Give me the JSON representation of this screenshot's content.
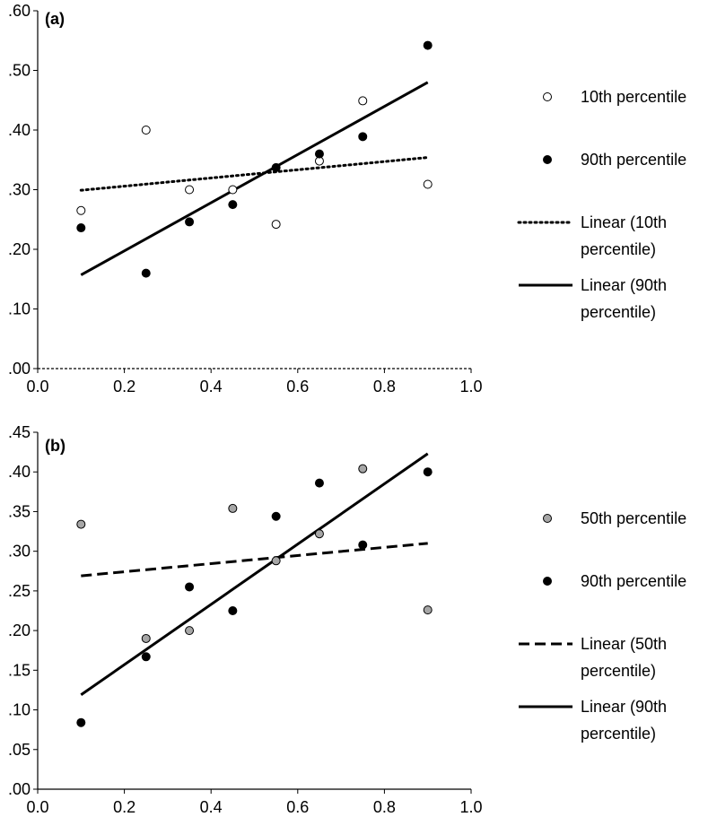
{
  "chart_data": [
    {
      "type": "scatter",
      "panel_label": "(a)",
      "xlim": [
        0.0,
        1.0
      ],
      "ylim": [
        0.0,
        0.6
      ],
      "x_ticks": [
        "0.0",
        "0.2",
        "0.4",
        "0.6",
        "0.8",
        "1.0"
      ],
      "y_ticks": [
        ".00",
        ".10",
        ".20",
        ".30",
        ".40",
        ".50",
        ".60"
      ],
      "series": [
        {
          "name": "10th percentile",
          "marker": "open-circle",
          "color": "#ffffff",
          "x": [
            0.1,
            0.25,
            0.35,
            0.45,
            0.55,
            0.65,
            0.75,
            0.9
          ],
          "y": [
            0.265,
            0.4,
            0.3,
            0.3,
            0.242,
            0.348,
            0.449,
            0.309
          ]
        },
        {
          "name": "90th percentile",
          "marker": "filled-circle",
          "color": "#000000",
          "x": [
            0.1,
            0.25,
            0.35,
            0.45,
            0.55,
            0.65,
            0.75,
            0.9
          ],
          "y": [
            0.236,
            0.16,
            0.246,
            0.275,
            0.337,
            0.36,
            0.389,
            0.542
          ]
        }
      ],
      "trendlines": [
        {
          "name": "Linear (10th percentile)",
          "name_lines": [
            "Linear (10th",
            "percentile)"
          ],
          "style": "dotted",
          "x": [
            0.1,
            0.9
          ],
          "y": [
            0.299,
            0.354
          ]
        },
        {
          "name": "Linear (90th percentile)",
          "name_lines": [
            "Linear (90th",
            "percentile)"
          ],
          "style": "solid",
          "x": [
            0.1,
            0.9
          ],
          "y": [
            0.157,
            0.48
          ]
        }
      ],
      "baseline": {
        "y": 0.0,
        "style": "dashed"
      }
    },
    {
      "type": "scatter",
      "panel_label": "(b)",
      "xlim": [
        0.0,
        1.0
      ],
      "ylim": [
        0.0,
        0.45
      ],
      "x_ticks": [
        "0.0",
        "0.2",
        "0.4",
        "0.6",
        "0.8",
        "1.0"
      ],
      "y_ticks": [
        ".00",
        ".05",
        ".10",
        ".15",
        ".20",
        ".25",
        ".30",
        ".35",
        ".40",
        ".45"
      ],
      "series": [
        {
          "name": "50th percentile",
          "marker": "grey-circle",
          "color": "#a6a6a6",
          "x": [
            0.1,
            0.25,
            0.35,
            0.45,
            0.55,
            0.65,
            0.75,
            0.9
          ],
          "y": [
            0.334,
            0.19,
            0.2,
            0.354,
            0.288,
            0.322,
            0.404,
            0.226
          ]
        },
        {
          "name": "90th percentile",
          "marker": "filled-circle",
          "color": "#000000",
          "x": [
            0.1,
            0.25,
            0.35,
            0.45,
            0.55,
            0.65,
            0.75,
            0.9
          ],
          "y": [
            0.084,
            0.167,
            0.255,
            0.225,
            0.344,
            0.386,
            0.308,
            0.4
          ]
        }
      ],
      "trendlines": [
        {
          "name": "Linear (50th percentile)",
          "name_lines": [
            "Linear (50th",
            "percentile)"
          ],
          "style": "dashed",
          "x": [
            0.1,
            0.9
          ],
          "y": [
            0.269,
            0.31
          ]
        },
        {
          "name": "Linear (90th percentile)",
          "name_lines": [
            "Linear (90th",
            "percentile)"
          ],
          "style": "solid",
          "x": [
            0.1,
            0.9
          ],
          "y": [
            0.119,
            0.423
          ]
        }
      ]
    }
  ]
}
